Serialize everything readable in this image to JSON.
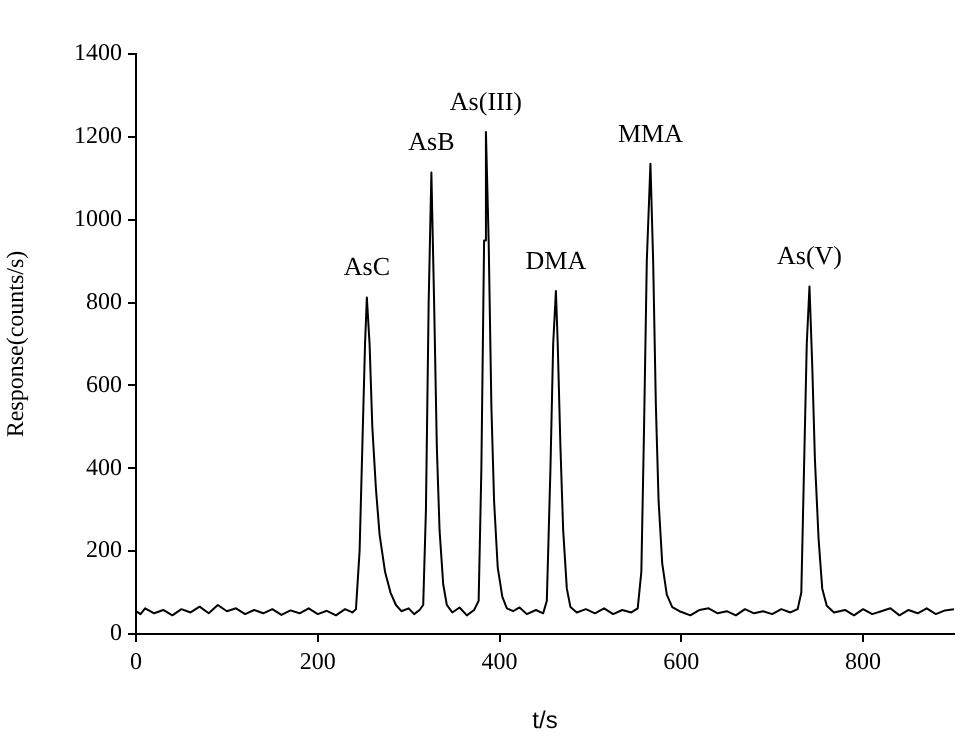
{
  "chart_data": {
    "type": "line",
    "xlabel": "t/s",
    "ylabel": "Response(counts/s)",
    "xlim": [
      0,
      900
    ],
    "xticks": [
      0,
      200,
      400,
      600,
      800
    ],
    "ylim": [
      0,
      1400
    ],
    "yticks": [
      0,
      200,
      400,
      600,
      800,
      1000,
      1200,
      1400
    ],
    "grid": false,
    "legend": false,
    "marker": "none",
    "line_style": "solid",
    "series": [
      {
        "color": "#000000",
        "x": [
          0,
          5,
          10,
          20,
          30,
          40,
          50,
          60,
          70,
          80,
          90,
          100,
          110,
          120,
          130,
          140,
          150,
          160,
          170,
          180,
          190,
          200,
          210,
          220,
          230,
          238,
          242,
          246,
          249,
          252,
          254,
          257,
          260,
          264,
          268,
          274,
          280,
          286,
          292,
          300,
          306,
          312,
          316,
          319,
          322,
          325,
          328,
          331,
          334,
          338,
          342,
          348,
          356,
          364,
          372,
          377,
          380,
          383,
          385,
          388,
          391,
          394,
          398,
          403,
          408,
          415,
          422,
          430,
          440,
          448,
          452,
          456,
          459,
          462,
          464,
          467,
          470,
          474,
          478,
          485,
          495,
          505,
          515,
          525,
          535,
          545,
          552,
          556,
          559,
          562,
          566,
          569,
          572,
          575,
          579,
          584,
          590,
          598,
          610,
          620,
          630,
          640,
          650,
          660,
          670,
          680,
          690,
          700,
          710,
          720,
          728,
          732,
          735,
          738,
          741,
          744,
          747,
          751,
          755,
          760,
          768,
          780,
          790,
          800,
          810,
          820,
          830,
          840,
          850,
          860,
          870,
          880,
          890,
          900
        ],
        "values": [
          55,
          48,
          62,
          50,
          58,
          45,
          60,
          52,
          66,
          50,
          70,
          55,
          62,
          48,
          58,
          50,
          60,
          46,
          57,
          50,
          62,
          48,
          56,
          45,
          60,
          52,
          60,
          200,
          450,
          700,
          812,
          700,
          500,
          350,
          240,
          150,
          100,
          70,
          55,
          62,
          48,
          58,
          70,
          300,
          800,
          1114,
          800,
          450,
          250,
          120,
          70,
          52,
          64,
          45,
          58,
          80,
          400,
          950,
          1212,
          950,
          550,
          320,
          160,
          90,
          62,
          55,
          64,
          48,
          58,
          50,
          80,
          400,
          700,
          828,
          700,
          450,
          250,
          110,
          65,
          52,
          60,
          50,
          62,
          48,
          58,
          52,
          62,
          150,
          500,
          900,
          1135,
          900,
          550,
          320,
          170,
          95,
          65,
          55,
          45,
          58,
          62,
          50,
          55,
          45,
          60,
          50,
          55,
          48,
          60,
          52,
          60,
          100,
          400,
          700,
          839,
          650,
          420,
          230,
          110,
          68,
          52,
          58,
          45,
          60,
          48,
          55,
          62,
          45,
          58,
          50,
          62,
          48,
          57,
          60
        ]
      }
    ],
    "annotations": [
      {
        "text": "AsC",
        "x": 254,
        "y": 812
      },
      {
        "text": "AsB",
        "x": 325,
        "y": 1114
      },
      {
        "text": "As(III)",
        "x": 385,
        "y": 1212
      },
      {
        "text": "DMA",
        "x": 462,
        "y": 828
      },
      {
        "text": "MMA",
        "x": 566,
        "y": 1135
      },
      {
        "text": "As(V)",
        "x": 741,
        "y": 839
      }
    ]
  }
}
